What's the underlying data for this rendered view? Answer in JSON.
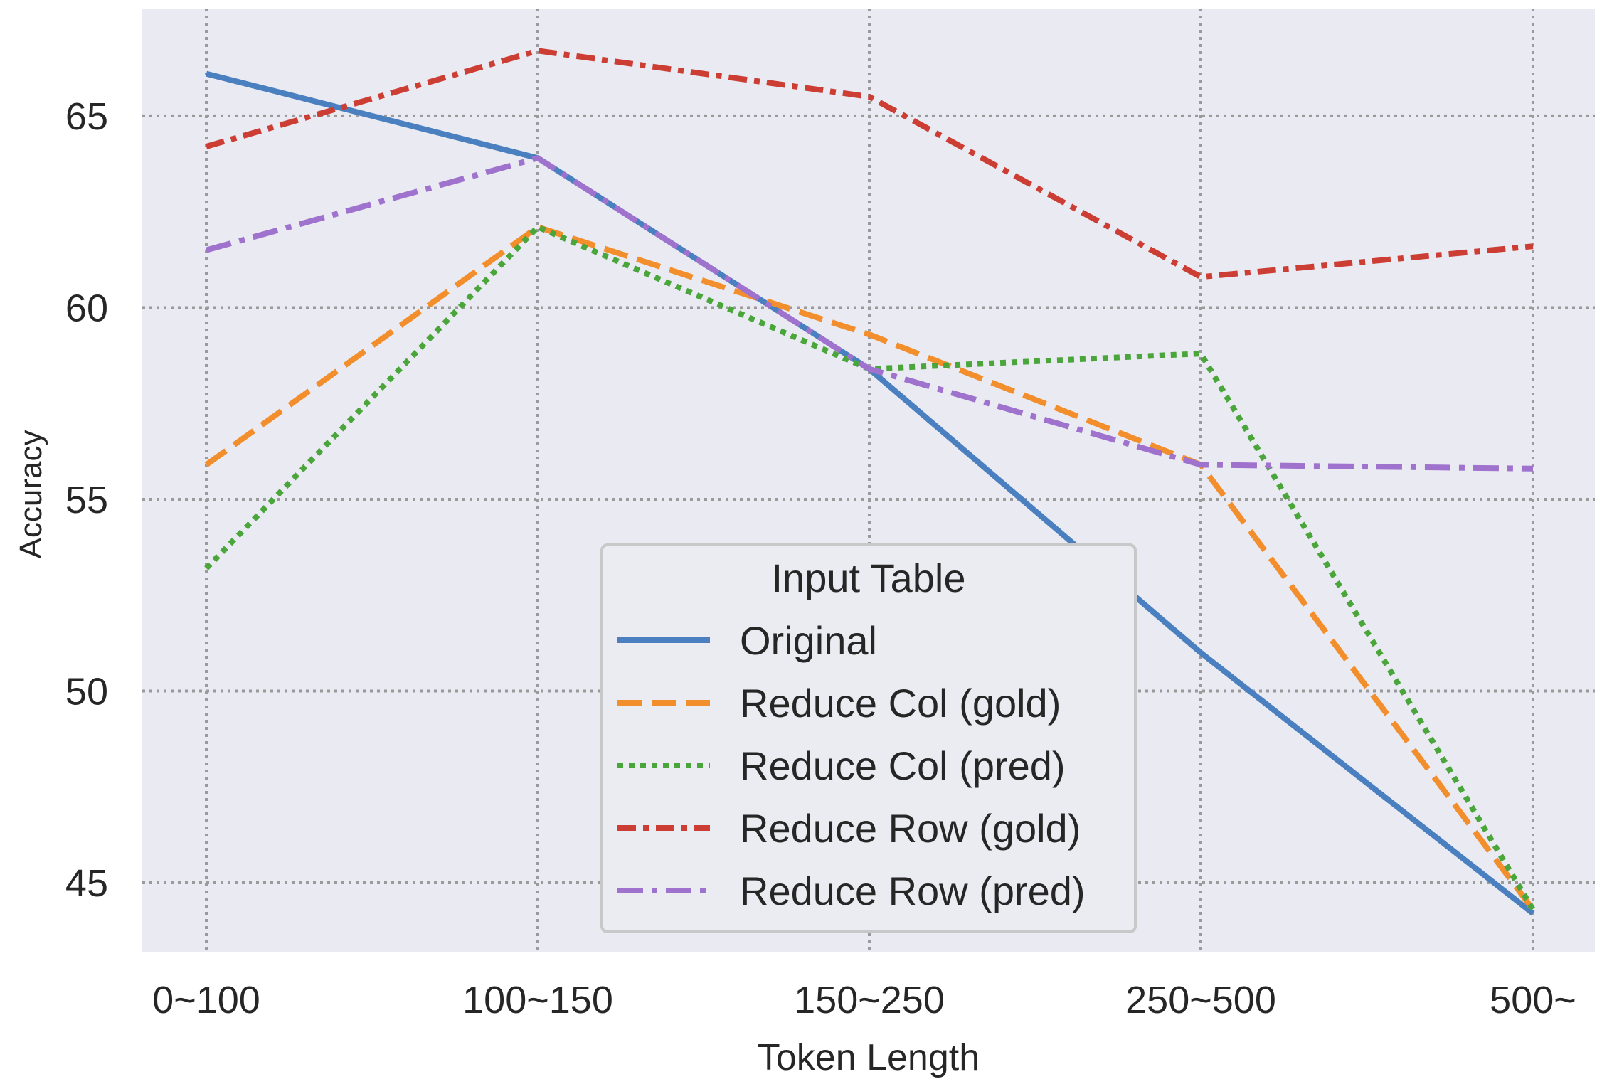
{
  "chart_data": {
    "type": "line",
    "title": "",
    "xlabel": "Token Length",
    "ylabel": "Accuracy",
    "categories": [
      "0~100",
      "100~150",
      "150~250",
      "250~500",
      "500~"
    ],
    "ylim": [
      43.2,
      67.8
    ],
    "yticks": [
      45,
      50,
      55,
      60,
      65
    ],
    "grid": true,
    "legend": {
      "title": "Input Table",
      "placement": "lower center"
    },
    "series": [
      {
        "name": "Original",
        "values": [
          66.1,
          63.9,
          58.4,
          51.0,
          44.2
        ],
        "color": "#4a7fc0",
        "dash": "solid"
      },
      {
        "name": "Reduce Col (gold)",
        "values": [
          55.9,
          62.1,
          59.3,
          55.9,
          44.3
        ],
        "color": "#f28e2b",
        "dash": "dashed"
      },
      {
        "name": "Reduce Col (pred)",
        "values": [
          53.2,
          62.1,
          58.4,
          58.8,
          44.3
        ],
        "color": "#4aa63a",
        "dash": "dotted"
      },
      {
        "name": "Reduce Row (gold)",
        "values": [
          64.2,
          66.7,
          65.5,
          60.8,
          61.6
        ],
        "color": "#cc3d34",
        "dash": "dashdot-wide"
      },
      {
        "name": "Reduce Row (pred)",
        "values": [
          61.5,
          63.9,
          58.4,
          55.9,
          55.8
        ],
        "color": "#9f73cd",
        "dash": "dashdot"
      }
    ]
  },
  "colors": {
    "plot_background": "#eaeaf2",
    "grid": "#9a9a9a",
    "legend_background": "#ebebf2",
    "legend_border": "#c8c8c8"
  }
}
